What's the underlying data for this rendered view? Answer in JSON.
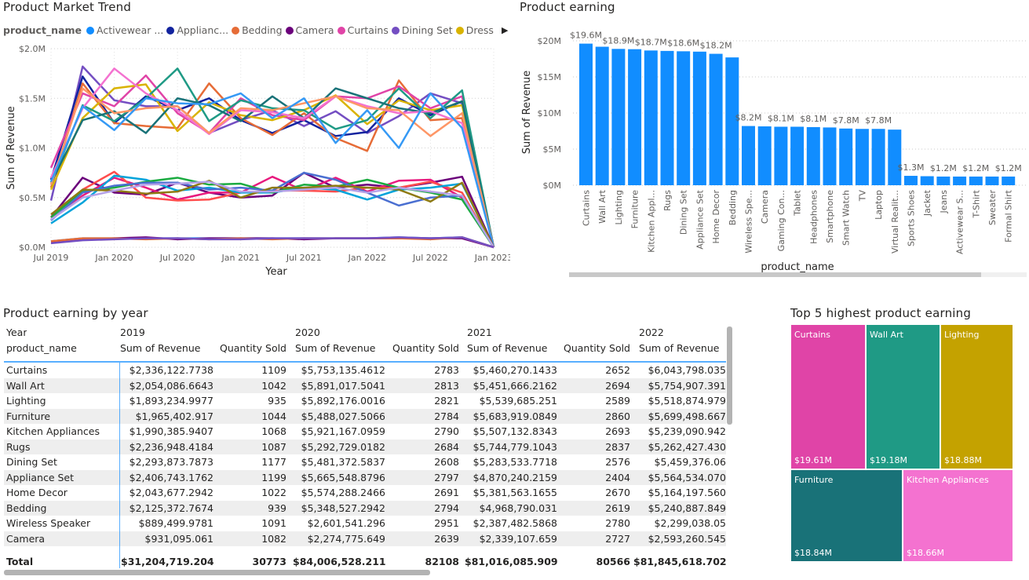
{
  "trend": {
    "title": "Product Market Trend",
    "legend_title": "product_name",
    "legend": [
      {
        "name": "Activewear ...",
        "color": "#118DFF"
      },
      {
        "name": "Applianc...",
        "color": "#12239E"
      },
      {
        "name": "Bedding",
        "color": "#E66C37"
      },
      {
        "name": "Camera",
        "color": "#6B007B"
      },
      {
        "name": "Curtains",
        "color": "#E044A7"
      },
      {
        "name": "Dining Set",
        "color": "#744EC2"
      },
      {
        "name": "Dress",
        "color": "#D9B300"
      }
    ],
    "legend_next_icon": "triangle-right-icon"
  },
  "bar": {
    "title": "Product earning"
  },
  "table": {
    "title": "Product earning by year",
    "year_label": "Year",
    "row_label": "product_name",
    "years": [
      "2019",
      "2020",
      "2021",
      "2022"
    ],
    "col_revenue": "Sum of Revenue",
    "col_qty": "Quantity Sold",
    "rows": [
      [
        "Curtains",
        "$2,336,122.7738",
        "1109",
        "$5,753,135.4612",
        "2783",
        "$5,460,270.1433",
        "2652",
        "$6,043,798.035"
      ],
      [
        "Wall Art",
        "$2,054,086.6643",
        "1042",
        "$5,891,017.5041",
        "2813",
        "$5,451,666.2162",
        "2694",
        "$5,754,907.391"
      ],
      [
        "Lighting",
        "$1,893,234.9977",
        "935",
        "$5,892,176.0016",
        "2821",
        "$5,539,685.251",
        "2589",
        "$5,518,874.979"
      ],
      [
        "Furniture",
        "$1,965,402.917",
        "1044",
        "$5,488,027.5066",
        "2784",
        "$5,683,919.0849",
        "2860",
        "$5,699,498.667"
      ],
      [
        "Kitchen Appliances",
        "$1,990,385.9407",
        "1068",
        "$5,921,167.0959",
        "2790",
        "$5,507,132.8343",
        "2693",
        "$5,239,090.942"
      ],
      [
        "Rugs",
        "$2,236,948.4184",
        "1087",
        "$5,292,729.0182",
        "2684",
        "$5,744,779.1043",
        "2837",
        "$5,262,427.430"
      ],
      [
        "Dining Set",
        "$2,293,873.7873",
        "1177",
        "$5,481,372.5837",
        "2608",
        "$5,283,533.7718",
        "2576",
        "$5,459,376.06"
      ],
      [
        "Appliance Set",
        "$2,406,743.1762",
        "1199",
        "$5,665,548.8796",
        "2797",
        "$4,870,240.2159",
        "2404",
        "$5,564,534.070"
      ],
      [
        "Home Decor",
        "$2,043,677.2942",
        "1022",
        "$5,574,288.2466",
        "2691",
        "$5,381,563.1655",
        "2670",
        "$5,164,197.560"
      ],
      [
        "Bedding",
        "$2,125,372.7674",
        "939",
        "$5,348,527.2942",
        "2794",
        "$4,968,790.031",
        "2619",
        "$5,240,887.849"
      ],
      [
        "Wireless Speaker",
        "$889,499.9781",
        "1091",
        "$2,601,541.296",
        "2951",
        "$2,387,482.5868",
        "2780",
        "$2,299,038.05"
      ],
      [
        "Camera",
        "$931,095.061",
        "1082",
        "$2,274,775.649",
        "2639",
        "$2,339,107.659",
        "2727",
        "$2,593,260.545"
      ]
    ],
    "total": [
      "Total",
      "$31,204,719.2042",
      "30773",
      "$84,006,528.2117",
      "82108",
      "$81,016,085.9091",
      "80566",
      "$81,845,618.702"
    ]
  },
  "treemap": {
    "title": "Top 5 highest product earning",
    "items": [
      {
        "name": "Curtains",
        "value": "$19.61M",
        "color": "#E044A7"
      },
      {
        "name": "Wall Art",
        "value": "$19.18M",
        "color": "#1F9A85"
      },
      {
        "name": "Lighting",
        "value": "$18.88M",
        "color": "#C4A200"
      },
      {
        "name": "Furniture",
        "value": "$18.84M",
        "color": "#197278"
      },
      {
        "name": "Kitchen Appliances",
        "value": "$18.66M",
        "color": "#F472D0"
      }
    ]
  },
  "chart_data": [
    {
      "type": "line",
      "title": "Product Market Trend",
      "xlabel": "Year",
      "ylabel": "Sum of Revenue",
      "x_ticks": [
        "Jul 2019",
        "Jan 2020",
        "Jul 2020",
        "Jan 2021",
        "Jul 2021",
        "Jan 2022",
        "Jul 2022",
        "Jan 2023"
      ],
      "y_ticks": [
        "$0.0M",
        "$0.5M",
        "$1.0M",
        "$1.5M",
        "$2.0M"
      ],
      "ylim": [
        0,
        2.0
      ],
      "y_unit": "$M",
      "grid": true,
      "legend": "top",
      "x": [
        "Jul 2019",
        "Oct 2019",
        "Jan 2020",
        "Apr 2020",
        "Jul 2020",
        "Oct 2020",
        "Jan 2021",
        "Apr 2021",
        "Jul 2021",
        "Oct 2021",
        "Jan 2022",
        "Apr 2022",
        "Jul 2022",
        "Oct 2022",
        "Jan 2023"
      ],
      "series": [
        {
          "name": "Dining Set",
          "color": "#744EC2",
          "values": [
            0.47,
            1.82,
            1.48,
            1.42,
            1.42,
            1.15,
            1.28,
            1.38,
            1.22,
            1.37,
            1.15,
            1.32,
            1.55,
            1.45,
            0
          ]
        },
        {
          "name": "Applianc...",
          "color": "#12239E",
          "values": [
            0.68,
            1.72,
            1.25,
            1.52,
            1.38,
            1.5,
            1.28,
            1.15,
            1.28,
            1.12,
            1.16,
            1.5,
            1.33,
            1.47,
            0
          ]
        },
        {
          "name": "Bedding",
          "color": "#E66C37",
          "values": [
            0.6,
            1.65,
            1.25,
            1.22,
            1.2,
            1.65,
            1.3,
            1.13,
            1.35,
            1.1,
            0.97,
            1.68,
            1.28,
            1.3,
            0
          ]
        },
        {
          "name": "Curtains",
          "color": "#E044A7",
          "values": [
            0.8,
            1.55,
            1.42,
            1.73,
            1.35,
            1.15,
            1.5,
            1.33,
            1.28,
            1.52,
            1.5,
            1.62,
            1.4,
            1.52,
            0
          ]
        },
        {
          "name": "Dress",
          "color": "#D9B300",
          "values": [
            0.58,
            1.3,
            1.6,
            1.64,
            1.17,
            1.46,
            1.33,
            1.28,
            1.38,
            1.53,
            1.24,
            1.48,
            1.38,
            1.43,
            0
          ]
        },
        {
          "color": "#1F9A85",
          "values": [
            0.63,
            1.43,
            1.27,
            1.5,
            1.8,
            1.27,
            1.48,
            1.4,
            1.38,
            1.19,
            1.28,
            1.6,
            1.3,
            1.58,
            0
          ]
        },
        {
          "color": "#197278",
          "values": [
            0.65,
            1.28,
            1.37,
            1.15,
            1.5,
            1.43,
            1.27,
            1.52,
            1.3,
            1.6,
            1.5,
            1.4,
            1.35,
            1.47,
            0
          ]
        },
        {
          "color": "#F472D0",
          "values": [
            0.7,
            1.4,
            1.8,
            1.55,
            1.38,
            1.14,
            1.38,
            1.36,
            1.3,
            1.52,
            1.42,
            1.35,
            1.37,
            1.25,
            0
          ]
        },
        {
          "color": "#FE9666",
          "values": [
            0.63,
            1.6,
            1.35,
            1.4,
            1.42,
            1.15,
            1.4,
            1.38,
            1.45,
            1.52,
            1.4,
            1.38,
            1.12,
            1.35,
            0
          ]
        },
        {
          "color": "#3599F5",
          "values": [
            0.66,
            1.42,
            1.18,
            1.5,
            1.45,
            1.44,
            1.55,
            1.3,
            1.5,
            1.05,
            1.38,
            1.0,
            1.55,
            1.2,
            0
          ]
        },
        {
          "name": "Camera",
          "color": "#6B007B",
          "values": [
            0.3,
            0.7,
            0.55,
            0.53,
            0.65,
            0.55,
            0.5,
            0.52,
            0.75,
            0.6,
            0.63,
            0.6,
            0.65,
            0.71,
            0
          ]
        },
        {
          "color": "#E81A7E",
          "values": [
            0.28,
            0.52,
            0.7,
            0.6,
            0.48,
            0.55,
            0.55,
            0.71,
            0.57,
            0.7,
            0.56,
            0.67,
            0.68,
            0.5,
            0
          ]
        },
        {
          "color": "#FF4D4D",
          "values": [
            0.3,
            0.58,
            0.76,
            0.5,
            0.47,
            0.48,
            0.55,
            0.57,
            0.57,
            0.56,
            0.6,
            0.6,
            0.66,
            0.55,
            0
          ]
        },
        {
          "color": "#00A3DA",
          "values": [
            0.24,
            0.45,
            0.72,
            0.68,
            0.57,
            0.6,
            0.55,
            0.55,
            0.6,
            0.58,
            0.48,
            0.58,
            0.6,
            0.64,
            0
          ]
        },
        {
          "color": "#1AAB40",
          "values": [
            0.3,
            0.57,
            0.6,
            0.66,
            0.7,
            0.63,
            0.64,
            0.55,
            0.63,
            0.61,
            0.68,
            0.6,
            0.55,
            0.48,
            0
          ]
        },
        {
          "color": "#4A6FD1",
          "values": [
            0.27,
            0.55,
            0.62,
            0.65,
            0.65,
            0.58,
            0.6,
            0.57,
            0.75,
            0.68,
            0.55,
            0.42,
            0.5,
            0.52,
            0
          ]
        },
        {
          "color": "#8E7A12",
          "values": [
            0.33,
            0.58,
            0.57,
            0.54,
            0.56,
            0.67,
            0.5,
            0.6,
            0.6,
            0.62,
            0.6,
            0.58,
            0.46,
            0.65,
            0
          ]
        },
        {
          "color": "#B5A1E8",
          "values": [
            0.28,
            0.5,
            0.57,
            0.63,
            0.64,
            0.66,
            0.56,
            0.56,
            0.58,
            0.6,
            0.55,
            0.6,
            0.56,
            0.52,
            0
          ]
        },
        {
          "name": "Activewear ...",
          "color": "#118DFF",
          "values": [
            0.06,
            0.09,
            0.09,
            0.09,
            0.09,
            0.09,
            0.09,
            0.09,
            0.09,
            0.09,
            0.09,
            0.1,
            0.09,
            0.1,
            0
          ]
        },
        {
          "color": "#6B007B",
          "values": [
            0.05,
            0.08,
            0.09,
            0.1,
            0.08,
            0.09,
            0.09,
            0.09,
            0.08,
            0.09,
            0.09,
            0.09,
            0.09,
            0.09,
            0
          ]
        },
        {
          "color": "#E66C37",
          "values": [
            0.06,
            0.09,
            0.09,
            0.08,
            0.09,
            0.08,
            0.09,
            0.08,
            0.09,
            0.09,
            0.09,
            0.09,
            0.08,
            0.1,
            0
          ]
        },
        {
          "color": "#744EC2",
          "values": [
            0.04,
            0.07,
            0.08,
            0.09,
            0.09,
            0.08,
            0.08,
            0.09,
            0.09,
            0.09,
            0.09,
            0.1,
            0.09,
            0.1,
            0
          ]
        }
      ]
    },
    {
      "type": "bar",
      "title": "Product earning",
      "xlabel": "product_name",
      "ylabel": "Sum of Revenue",
      "y_ticks": [
        "$0M",
        "$5M",
        "$10M",
        "$15M",
        "$20M"
      ],
      "ylim": [
        0,
        20
      ],
      "y_unit": "$M",
      "grid": true,
      "color": "#118DFF",
      "categories": [
        "Curtains",
        "Wall Art",
        "Lighting",
        "Furniture",
        "Kitchen Appl...",
        "Rugs",
        "Dining Set",
        "Appliance Set",
        "Home Decor",
        "Bedding",
        "Wireless Spe...",
        "Camera",
        "Gaming Con...",
        "Tablet",
        "Headphones",
        "Smartphone",
        "Smart Watch",
        "TV",
        "Laptop",
        "Virtual Realit...",
        "Sports Shoes",
        "Jacket",
        "Jeans",
        "Activewear S...",
        "T-Shirt",
        "Sweater",
        "Formal Shirt"
      ],
      "values": [
        19.61,
        19.18,
        18.88,
        18.84,
        18.66,
        18.6,
        18.55,
        18.5,
        18.2,
        17.7,
        8.2,
        8.15,
        8.1,
        8.1,
        8.05,
        8.0,
        7.85,
        7.8,
        7.8,
        7.7,
        1.3,
        1.25,
        1.2,
        1.2,
        1.2,
        1.2,
        1.2
      ],
      "data_labels": [
        "$19.6M",
        "",
        "$18.9M",
        "",
        "$18.7M",
        "",
        "$18.6M",
        "",
        "$18.2M",
        "",
        "$8.2M",
        "",
        "$8.1M",
        "",
        "$8.1M",
        "",
        "$7.8M",
        "",
        "$7.8M",
        "",
        "$1.3M",
        "",
        "$1.2M",
        "",
        "$1.2M",
        "",
        "$1.2M"
      ]
    }
  ]
}
